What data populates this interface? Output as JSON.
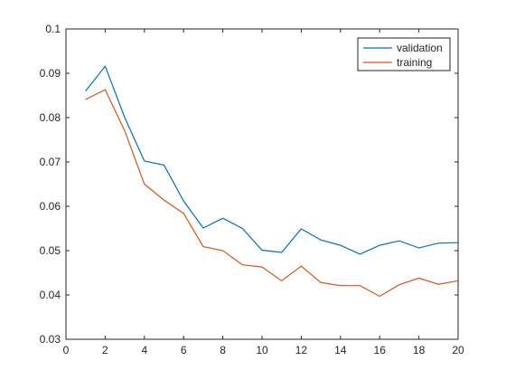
{
  "chart_data": {
    "type": "line",
    "title": "",
    "xlabel": "",
    "ylabel": "",
    "xlim": [
      0,
      20
    ],
    "ylim": [
      0.03,
      0.1
    ],
    "x_ticks": [
      "0",
      "2",
      "4",
      "6",
      "8",
      "10",
      "12",
      "14",
      "16",
      "18",
      "20"
    ],
    "y_ticks": [
      "0.03",
      "0.04",
      "0.05",
      "0.06",
      "0.07",
      "0.08",
      "0.09",
      "0.1"
    ],
    "x": [
      1,
      2,
      3,
      4,
      5,
      6,
      7,
      8,
      9,
      10,
      11,
      12,
      13,
      14,
      15,
      16,
      17,
      18,
      19,
      20
    ],
    "series": [
      {
        "name": "validation",
        "color": "#0072BD",
        "values": [
          0.086,
          0.0916,
          0.08,
          0.0702,
          0.0693,
          0.0612,
          0.0551,
          0.0573,
          0.055,
          0.0501,
          0.0496,
          0.0549,
          0.0524,
          0.0512,
          0.0492,
          0.0512,
          0.0522,
          0.0506,
          0.0517,
          0.0518
        ]
      },
      {
        "name": "training",
        "color": "#D95319",
        "values": [
          0.0841,
          0.0863,
          0.077,
          0.065,
          0.0614,
          0.0584,
          0.0509,
          0.05,
          0.0468,
          0.0463,
          0.0432,
          0.0465,
          0.0428,
          0.0421,
          0.0421,
          0.0397,
          0.0423,
          0.0438,
          0.0424,
          0.0432
        ]
      }
    ],
    "grid": false,
    "legend_position": "top-right"
  }
}
